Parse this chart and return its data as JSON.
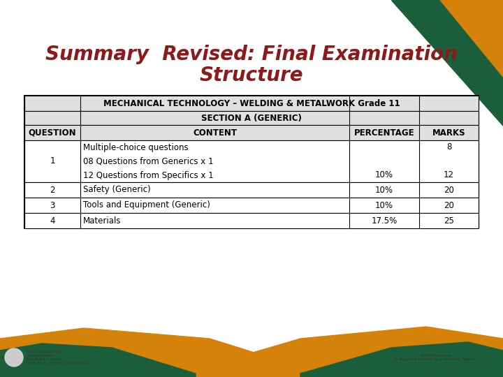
{
  "title_line1": "Summary  Revised: Final Examination",
  "title_line2": "Structure",
  "title_color": "#8B1A1A",
  "bg_color": "#FFFFFF",
  "table_header1": "MECHANICAL TECHNOLOGY – WELDING & METALWORK Grade 11",
  "table_header2": "SECTION A (GENERIC)",
  "col_headers": [
    "QUESTION",
    "CONTENT",
    "PERCENTAGE",
    "MARKS"
  ],
  "green_color": "#1B5E3B",
  "orange_color": "#D4820A",
  "table_border_color": "#000000",
  "header_bg": "#E0E0E0",
  "title_fontsize": 20,
  "table_fontsize": 8.5
}
